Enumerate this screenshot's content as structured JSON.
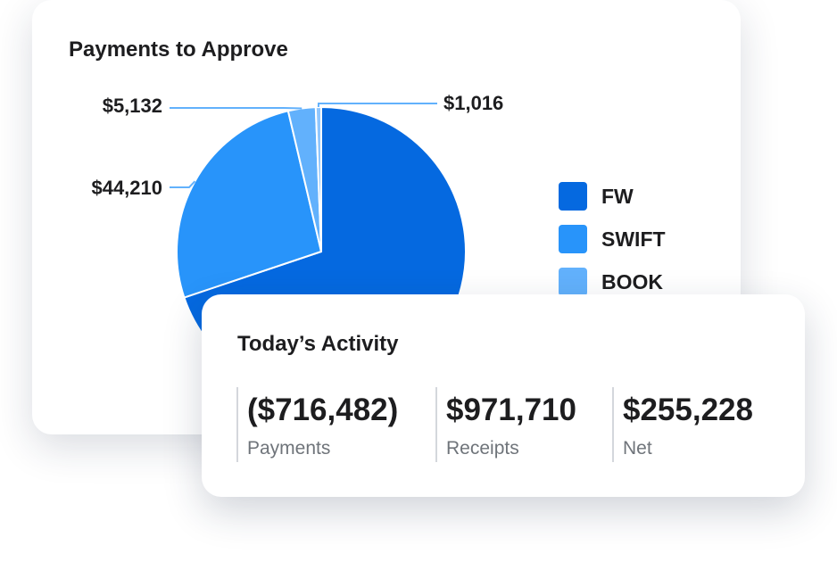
{
  "payments_card": {
    "title": "Payments to Approve"
  },
  "chart_data": {
    "type": "pie",
    "title": "Payments to Approve",
    "slices": [
      {
        "name": "FW",
        "value": 116642,
        "color": "#0569e0",
        "label": ""
      },
      {
        "name": "SWIFT",
        "value": 44210,
        "color": "#2894fa",
        "label": "$44,210"
      },
      {
        "name": "BOOK",
        "value": 5132,
        "color": "#62b1fc",
        "label": "$5,132"
      },
      {
        "name": "",
        "value": 1016,
        "color": "#8fc6fd",
        "label": "$1,016"
      }
    ],
    "legend": {
      "position": "right",
      "items": [
        {
          "label": "FW",
          "color": "#0569e0"
        },
        {
          "label": "SWIFT",
          "color": "#2894fa"
        },
        {
          "label": "BOOK",
          "color": "#62b1fc"
        }
      ]
    }
  },
  "activity_card": {
    "title": "Today’s Activity",
    "stats": [
      {
        "value": "($716,482)",
        "label": "Payments"
      },
      {
        "value": "$971,710",
        "label": "Receipts"
      },
      {
        "value": "$255,228",
        "label": "Net"
      }
    ]
  },
  "colors": {
    "leader_line": "#62b1fc",
    "text": "#1d1d1f",
    "muted_text": "#6f747a",
    "divider": "#d4d7dc"
  }
}
